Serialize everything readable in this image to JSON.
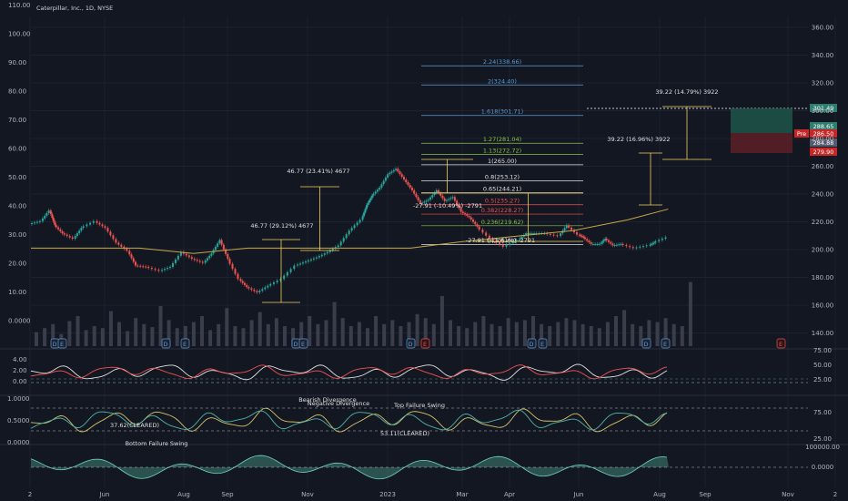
{
  "header": {
    "symbol_line": "Caterpillar, Inc., 1D, NYSE"
  },
  "colors": {
    "bg": "#131722",
    "up": "#26a69a",
    "down": "#ef5350",
    "ma": "#c9a84a",
    "fib_blue": "#5b9bd5",
    "fib_green": "#8bc34a",
    "fib_red": "#ef5350",
    "white": "#e0e0e0",
    "yellow": "#f0d060",
    "grid": "#1e2230"
  },
  "chart_data": {
    "type": "candlestick",
    "x_ticks": [
      "2",
      "Jun",
      "Aug",
      "Sep",
      "Nov",
      "2023",
      "Mar",
      "Apr",
      "Jun",
      "Aug",
      "Sep",
      "Nov",
      "2"
    ],
    "price_axis": {
      "range": [
        130,
        370
      ],
      "ticks": [
        "360.00",
        "340.00",
        "320.00",
        "300.00",
        "280.00",
        "260.00",
        "240.00",
        "220.00",
        "200.00",
        "180.00",
        "160.00",
        "140.00"
      ]
    },
    "left_axis_ticks": [
      "110.00",
      "100.00",
      "90.00",
      "80.00",
      "70.00",
      "60.00",
      "50.00",
      "40.00",
      "30.00",
      "20.00",
      "10.00",
      "0.0000"
    ],
    "price_labels": [
      {
        "text": "301.49",
        "color": "#2e7d6e"
      },
      {
        "text": "288.65",
        "color": "#2e7d6e"
      },
      {
        "text": "286.50",
        "color": "#c62828",
        "prefix": "Pre"
      },
      {
        "text": "284.88",
        "color": "#555b6e"
      },
      {
        "text": "279.90",
        "color": "#c62828"
      }
    ],
    "close_path": [
      [
        0,
        221
      ],
      [
        8,
        223
      ],
      [
        14,
        231
      ],
      [
        18,
        220
      ],
      [
        24,
        214
      ],
      [
        32,
        210
      ],
      [
        38,
        218
      ],
      [
        48,
        223
      ],
      [
        56,
        218
      ],
      [
        64,
        207
      ],
      [
        72,
        201
      ],
      [
        78,
        190
      ],
      [
        86,
        189
      ],
      [
        96,
        186
      ],
      [
        104,
        189
      ],
      [
        112,
        200
      ],
      [
        120,
        195
      ],
      [
        128,
        192
      ],
      [
        134,
        199
      ],
      [
        140,
        209
      ],
      [
        146,
        195
      ],
      [
        154,
        180
      ],
      [
        160,
        174
      ],
      [
        168,
        170
      ],
      [
        176,
        175
      ],
      [
        186,
        180
      ],
      [
        196,
        190
      ],
      [
        204,
        193
      ],
      [
        212,
        196
      ],
      [
        220,
        200
      ],
      [
        228,
        205
      ],
      [
        236,
        216
      ],
      [
        244,
        224
      ],
      [
        248,
        235
      ],
      [
        252,
        242
      ],
      [
        258,
        248
      ],
      [
        264,
        258
      ],
      [
        270,
        262
      ],
      [
        276,
        254
      ],
      [
        282,
        246
      ],
      [
        288,
        236
      ],
      [
        294,
        239
      ],
      [
        300,
        246
      ],
      [
        306,
        238
      ],
      [
        312,
        241
      ],
      [
        318,
        230
      ],
      [
        324,
        226
      ],
      [
        330,
        219
      ],
      [
        340,
        210
      ],
      [
        350,
        204
      ],
      [
        360,
        209
      ],
      [
        366,
        214
      ],
      [
        372,
        214
      ],
      [
        380,
        214
      ],
      [
        390,
        212
      ],
      [
        396,
        220
      ],
      [
        404,
        213
      ],
      [
        408,
        211
      ],
      [
        414,
        206
      ],
      [
        420,
        206
      ],
      [
        424,
        210
      ],
      [
        430,
        205
      ],
      [
        436,
        206
      ],
      [
        446,
        203
      ],
      [
        456,
        205
      ],
      [
        460,
        207
      ],
      [
        470,
        211
      ]
    ],
    "series": [
      {
        "name": "",
        "type": "line",
        "values": [
          [
            0,
            203
          ],
          [
            40,
            203
          ],
          [
            80,
            203
          ],
          [
            120,
            199
          ],
          [
            160,
            203
          ],
          [
            200,
            203
          ],
          [
            240,
            203
          ],
          [
            280,
            203
          ],
          [
            320,
            208
          ],
          [
            360,
            212
          ],
          [
            400,
            216
          ],
          [
            440,
            224
          ],
          [
            470,
            232
          ]
        ]
      }
    ],
    "volume": [
      14,
      18,
      22,
      12,
      25,
      30,
      16,
      20,
      18,
      35,
      24,
      15,
      28,
      22,
      19,
      40,
      26,
      18,
      20,
      24,
      30,
      16,
      22,
      38,
      20,
      18,
      26,
      34,
      22,
      28,
      20,
      18,
      24,
      30,
      22,
      26,
      44,
      28,
      20,
      24,
      18,
      30,
      22,
      26,
      20,
      24,
      32,
      28,
      22,
      50,
      26,
      20,
      18,
      24,
      30,
      22,
      20,
      28,
      24,
      26,
      30,
      22,
      20,
      24,
      28,
      26,
      22,
      20,
      18,
      24,
      30,
      36,
      22,
      20,
      26,
      24,
      28,
      22,
      20,
      64
    ],
    "fib_levels": [
      {
        "label": "2.24(338.66)",
        "price": 338.66,
        "color": "#5b9bd5"
      },
      {
        "label": "2(324.40)",
        "price": 324.4,
        "color": "#5b9bd5"
      },
      {
        "label": "1.618(301.71)",
        "price": 301.71,
        "color": "#5b9bd5"
      },
      {
        "label": "1.27(281.04)",
        "price": 281.04,
        "color": "#8bc34a"
      },
      {
        "label": "1.13(272.72)",
        "price": 272.72,
        "color": "#8bc34a"
      },
      {
        "label": "1(265.00)",
        "price": 265.0,
        "color": "#e0e0e0"
      },
      {
        "label": "0.8(253.12)",
        "price": 253.12,
        "color": "#e0e0e0"
      },
      {
        "label": "0.65(244.21)",
        "price": 244.21,
        "color": "#e0e0e0"
      },
      {
        "label": "0.5(235.27)",
        "price": 235.27,
        "color": "#ef5350"
      },
      {
        "label": "0.382(228.27)",
        "price": 228.27,
        "color": "#ef5350"
      },
      {
        "label": "0.236(219.62)",
        "price": 219.62,
        "color": "#8bc34a"
      },
      {
        "label": "0(205.60)",
        "price": 205.6,
        "color": "#e0e0e0"
      }
    ],
    "annotations": [
      {
        "text": "46.77 (23.41%) 4677",
        "color": "#e0e0e0"
      },
      {
        "text": "46.77 (29.12%) 4677",
        "color": "#e0e0e0"
      },
      {
        "text": "-27.91 (-10.49%) -2791",
        "color": "#e0e0e0"
      },
      {
        "text": "-27.91 (-11.61%) -2791",
        "color": "#e0e0e0"
      },
      {
        "text": "39.22 (16.96%) 3922",
        "color": "#e0e0e0"
      },
      {
        "text": "39.22 (14.79%) 3922",
        "color": "#e0e0e0"
      }
    ],
    "event_markers": [
      "D",
      "E",
      "D",
      "E",
      "D",
      "E",
      "D",
      "E",
      "D",
      "E",
      "D",
      "E",
      "E"
    ],
    "panels": [
      {
        "name": "rsi",
        "left_ticks": [
          "4.00",
          "2.00",
          "0.00"
        ],
        "right_ticks": [
          "75.00",
          "50.00",
          "25.00"
        ]
      },
      {
        "name": "stoch",
        "left_ticks": [
          "1.0000",
          "0.5000",
          "0.0000"
        ],
        "right_ticks": [
          "75.00",
          "25.00"
        ],
        "notes": [
          "Bearish Divergence",
          "Negative Divergence",
          "Top Failure Swing",
          "37.62(CLEARED)",
          "53.11(CLEARED)",
          "Bottom Failure Swing"
        ]
      },
      {
        "name": "obv",
        "right_ticks": [
          "100000.00",
          "0.0000"
        ]
      }
    ]
  }
}
